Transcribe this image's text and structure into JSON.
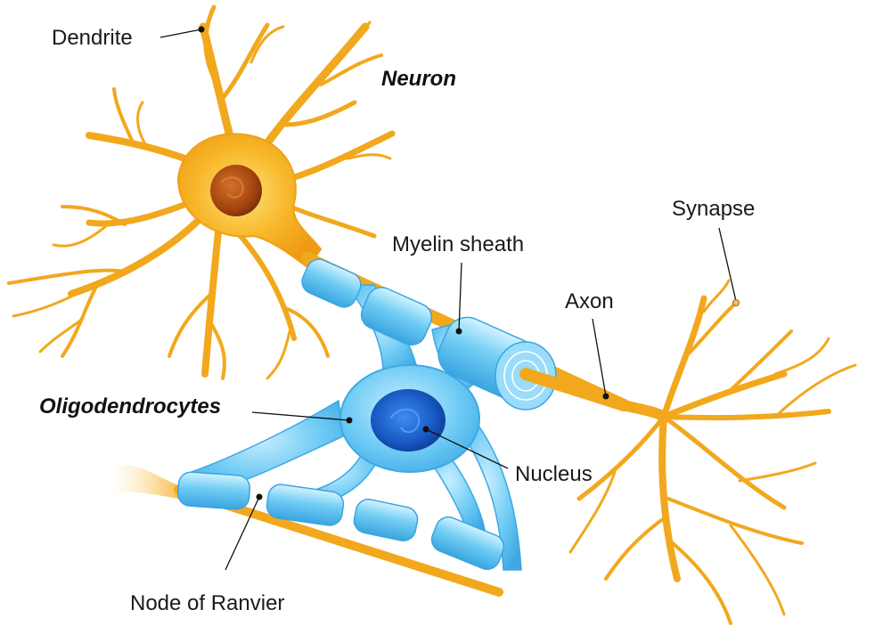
{
  "colors": {
    "neuron": "#F2A81D",
    "neuron_light": "#FFD970",
    "nucleus_neuron": "#B4541A",
    "myelin": "#5EC3F0",
    "myelin_light": "#BDEBFB",
    "oligo_nucleus": "#1A5FC9",
    "label": "#1a1a1a"
  },
  "labels": {
    "neuron_title": "Neuron",
    "oligo_title": "Oligodendrocytes",
    "dendrite": "Dendrite",
    "myelin_sheath": "Myelin sheath",
    "synapse": "Synapse",
    "axon": "Axon",
    "nucleus": "Nucleus",
    "node_of_ranvier": "Node of Ranvier"
  }
}
